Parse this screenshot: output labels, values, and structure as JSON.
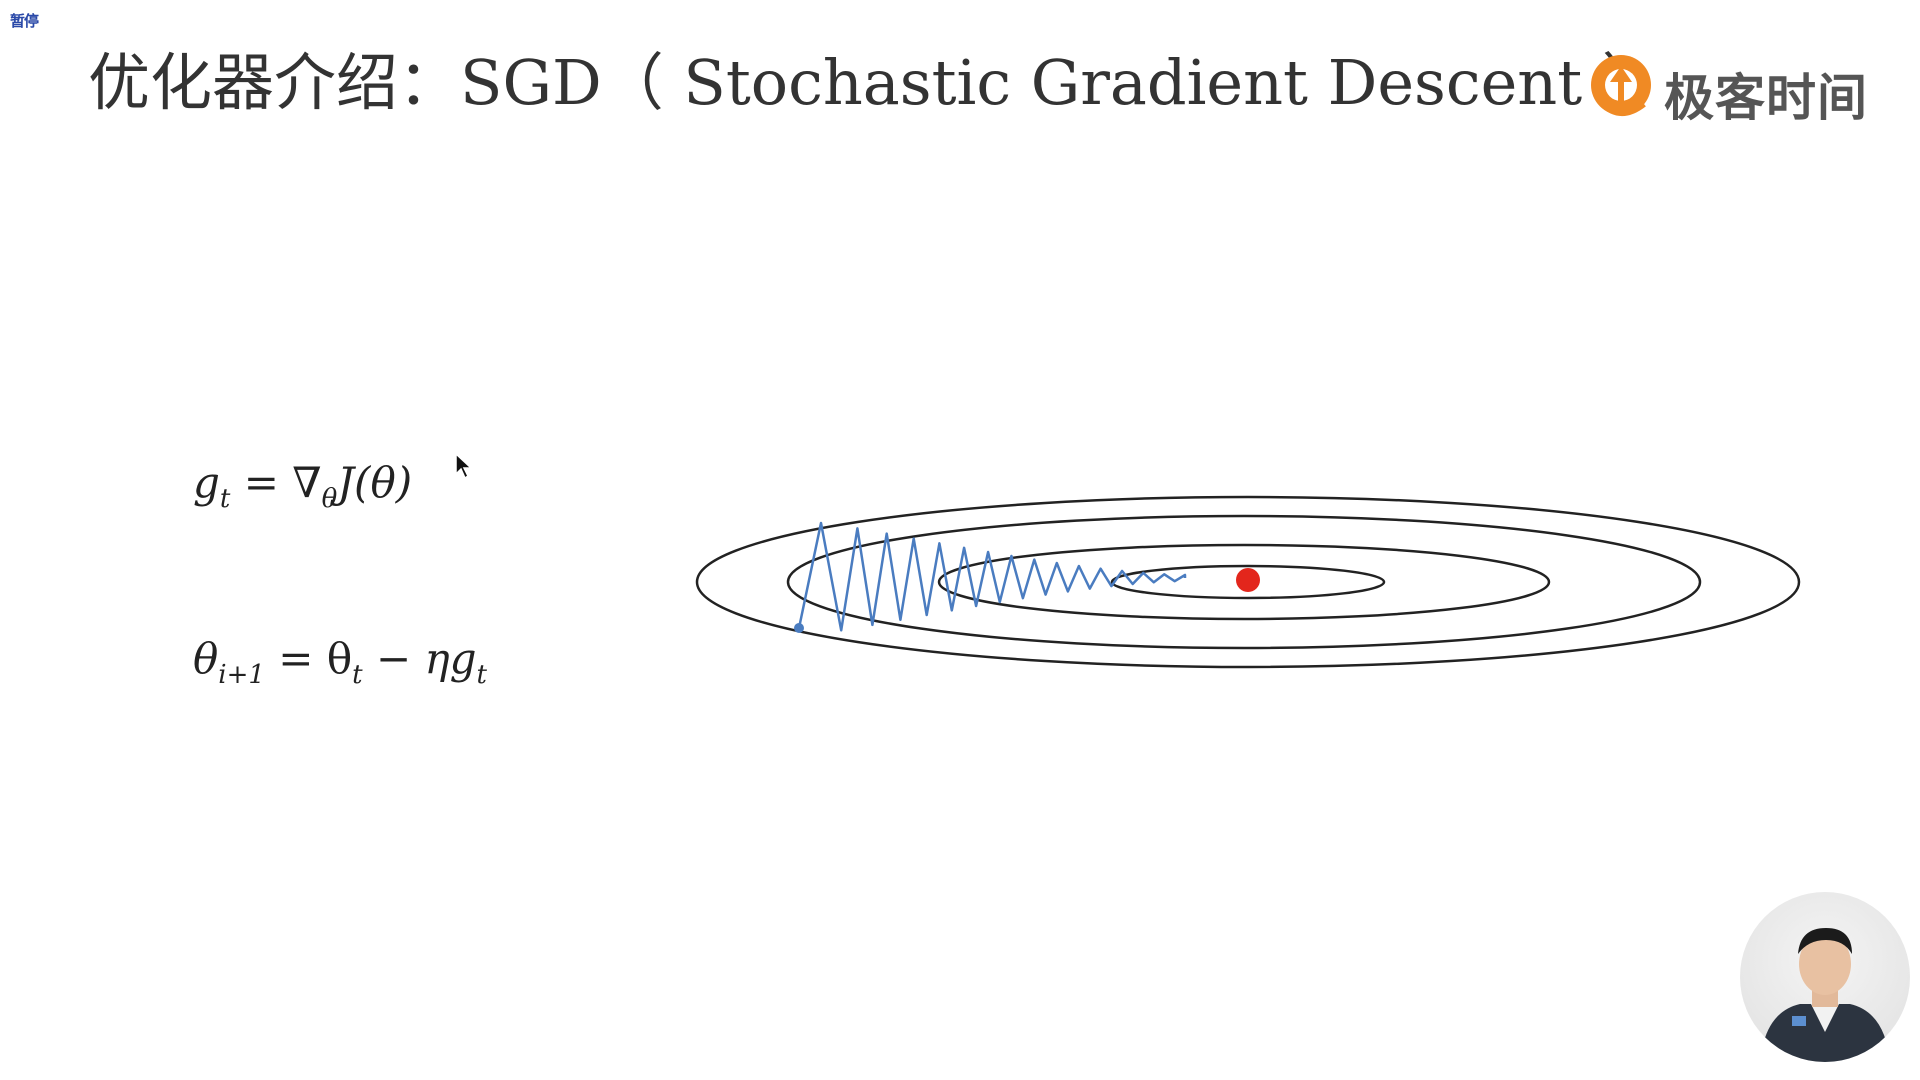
{
  "overlay": {
    "pause_label": "暂停"
  },
  "slide": {
    "title": "优化器介绍：SGD（ Stochastic Gradient Descent ）",
    "brand_name": "极客时间",
    "formula_1": {
      "g": "g",
      "g_sub": "t",
      "eq": " = ∇",
      "theta_sub": "θ",
      "rest": "J(θ)"
    },
    "formula_2": {
      "theta": "θ",
      "theta_sub": "i+1",
      "eq": " = θ",
      "t_sub": "t",
      "minus": " − ηg",
      "g_sub": "t"
    }
  },
  "colors": {
    "title": "#333333",
    "contour_lines": "#222222",
    "sgd_path": "#4a7cc0",
    "optimum_point": "#e3261c",
    "logo_orange": "#f08a24",
    "logo_text": "#555555"
  },
  "diagram": {
    "contour_count": 4,
    "optimum_marker": "red-dot",
    "path_style": "zigzag-decaying"
  },
  "icons": {
    "cursor": "arrow-cursor-icon",
    "logo": "geektime-logo-icon",
    "presenter": "presenter-webcam"
  }
}
